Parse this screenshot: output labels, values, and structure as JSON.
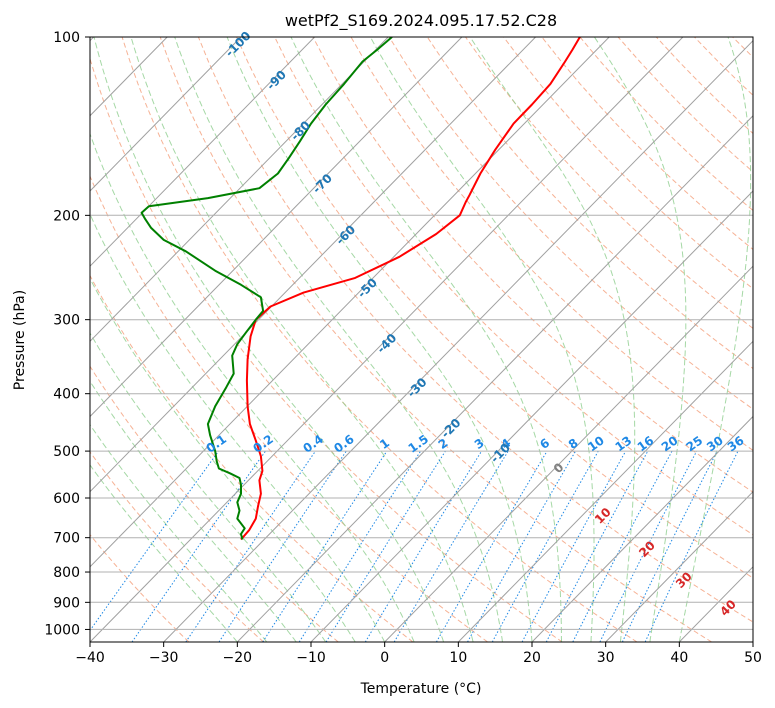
{
  "chart_data": {
    "type": "line",
    "title": "wetPf2_S169.2024.095.17.52.C28",
    "xlabel": "Temperature (°C)",
    "ylabel": "Pressure (hPa)",
    "xlim": [
      -40,
      50
    ],
    "ylim": [
      1050,
      100
    ],
    "y_scale": "log",
    "x_ticks": [
      "−40",
      "−30",
      "−20",
      "−10",
      "0",
      "10",
      "20",
      "30",
      "40",
      "50"
    ],
    "x_tick_values": [
      -40,
      -30,
      -20,
      -10,
      0,
      10,
      20,
      30,
      40,
      50
    ],
    "y_ticks": [
      "100",
      "200",
      "300",
      "400",
      "500",
      "600",
      "700",
      "800",
      "900",
      "1000"
    ],
    "y_tick_values": [
      100,
      200,
      300,
      400,
      500,
      600,
      700,
      800,
      900,
      1000
    ],
    "grid": true,
    "series": [
      {
        "color": "#ff0000",
        "points": [
          [
            -19.5,
            705
          ],
          [
            -18.4,
            680
          ],
          [
            -17.5,
            650
          ],
          [
            -17.2,
            620
          ],
          [
            -16.8,
            590
          ],
          [
            -17,
            560
          ],
          [
            -16.6,
            540
          ],
          [
            -16.8,
            510
          ],
          [
            -17.5,
            480
          ],
          [
            -18.3,
            450
          ],
          [
            -18.6,
            420
          ],
          [
            -18.7,
            380
          ],
          [
            -18.6,
            350
          ],
          [
            -18.2,
            320
          ],
          [
            -17.5,
            300
          ],
          [
            -15.5,
            285
          ],
          [
            -11,
            270
          ],
          [
            -4,
            255
          ],
          [
            2,
            235
          ],
          [
            7,
            215
          ],
          [
            10.2,
            200
          ],
          [
            11,
            190
          ],
          [
            11.5,
            185
          ],
          [
            13,
            170
          ],
          [
            15,
            155
          ],
          [
            17.5,
            140
          ],
          [
            20,
            130
          ],
          [
            22.5,
            120
          ],
          [
            24.5,
            110
          ],
          [
            25.5,
            105
          ],
          [
            26.5,
            100
          ]
        ]
      },
      {
        "color": "#008000",
        "points": [
          [
            -19.3,
            705
          ],
          [
            -19.5,
            690
          ],
          [
            -19,
            675
          ],
          [
            -20,
            650
          ],
          [
            -19.7,
            630
          ],
          [
            -20,
            610
          ],
          [
            -19.5,
            590
          ],
          [
            -19.5,
            570
          ],
          [
            -19.7,
            555
          ],
          [
            -21,
            545
          ],
          [
            -22.5,
            535
          ],
          [
            -22.8,
            520
          ],
          [
            -23,
            500
          ],
          [
            -23.7,
            470
          ],
          [
            -24,
            450
          ],
          [
            -23,
            420
          ],
          [
            -21.5,
            390
          ],
          [
            -20.5,
            370
          ],
          [
            -20.7,
            345
          ],
          [
            -20,
            330
          ],
          [
            -18.8,
            315
          ],
          [
            -17.5,
            300
          ],
          [
            -16.5,
            290
          ],
          [
            -16.8,
            275
          ],
          [
            -19.5,
            262
          ],
          [
            -23,
            248
          ],
          [
            -27,
            230
          ],
          [
            -30,
            220
          ],
          [
            -31.7,
            210
          ],
          [
            -32.5,
            203
          ],
          [
            -33,
            198
          ],
          [
            -32,
            193
          ],
          [
            -24,
            187
          ],
          [
            -17,
            180
          ],
          [
            -14.5,
            170
          ],
          [
            -13,
            160
          ],
          [
            -11.5,
            150
          ],
          [
            -10,
            140
          ],
          [
            -8,
            130
          ],
          [
            -5.5,
            120
          ],
          [
            -3,
            110
          ],
          [
            -1,
            105
          ],
          [
            1,
            100
          ]
        ]
      }
    ],
    "isotherms_c": [
      -100,
      -90,
      -80,
      -70,
      -60,
      -50,
      -40,
      -30,
      -20,
      -10,
      0,
      10,
      20,
      30,
      40,
      50
    ],
    "isotherm_labels": [
      "-100",
      "-90",
      "-80",
      "-70",
      "-60",
      "-50",
      "-40",
      "-30",
      "-20",
      "-10"
    ],
    "mixing_ratio_labels": [
      "0.1",
      "0.2",
      "0.4",
      "0.6",
      "1",
      "1.5",
      "2",
      "3",
      "4",
      "6",
      "8",
      "10",
      "13",
      "16",
      "20",
      "25",
      "30",
      "36"
    ],
    "mixing_ratio_values": [
      0.1,
      0.2,
      0.4,
      0.6,
      1,
      1.5,
      2,
      3,
      4,
      6,
      8,
      10,
      13,
      16,
      20,
      25,
      30,
      36
    ],
    "lcl_labels": [
      "0",
      "10",
      "20",
      "30",
      "40"
    ],
    "colors": {
      "temperature": "#ff0000",
      "dewpoint": "#008000",
      "isobar_grid": "#b0b0b0",
      "skew_isotherm": "#a0a0a0",
      "dry_adiabat": "#f4a582",
      "moist_adiabat": "#8fce8f",
      "mixing_ratio": "#1e88e5",
      "isotherm_label": "#1f77b4",
      "lcl_label": "#d62728"
    }
  }
}
